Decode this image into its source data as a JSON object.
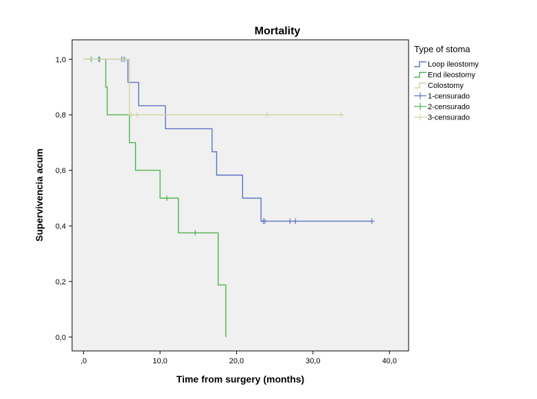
{
  "chart_data": {
    "type": "line",
    "subtype": "kaplan-meier-step",
    "title": "Mortality",
    "xlabel": "Time from surgery (months)",
    "ylabel": "Supervivencia acum",
    "xlim": [
      -1.5,
      42.5
    ],
    "ylim": [
      -0.05,
      1.07
    ],
    "x_ticks": [
      {
        "value": 0,
        "label": ",0"
      },
      {
        "value": 10,
        "label": "10,0"
      },
      {
        "value": 20,
        "label": "20,0"
      },
      {
        "value": 30,
        "label": "30,0"
      },
      {
        "value": 40,
        "label": "40,0"
      }
    ],
    "y_ticks": [
      {
        "value": 0,
        "label": "0,0"
      },
      {
        "value": 0.2,
        "label": "0,2"
      },
      {
        "value": 0.4,
        "label": "0,4"
      },
      {
        "value": 0.6,
        "label": "0,6"
      },
      {
        "value": 0.8,
        "label": "0,8"
      },
      {
        "value": 1.0,
        "label": "1,0"
      }
    ],
    "grid": false,
    "legend": {
      "title": "Type of stoma",
      "position": "right",
      "entries": [
        "Loop ileostomy",
        "End ileostomy",
        "Colostomy",
        "1-censurado",
        "2-censurado",
        "3-censurado"
      ]
    },
    "series": [
      {
        "name": "Loop ileostomy",
        "censor_name": "1-censurado",
        "color": "#5b73c4",
        "steps": [
          [
            0,
            1.0
          ],
          [
            5.8,
            0.917
          ],
          [
            7.2,
            0.833
          ],
          [
            10.7,
            0.75
          ],
          [
            16.8,
            0.667
          ],
          [
            17.4,
            0.583
          ],
          [
            20.8,
            0.5
          ],
          [
            23.2,
            0.417
          ],
          [
            37.7,
            0.417
          ]
        ],
        "censored": [
          [
            2.0,
            1.0
          ],
          [
            5.0,
            1.0
          ],
          [
            5.3,
            1.0
          ],
          [
            23.5,
            0.417
          ],
          [
            23.7,
            0.417
          ],
          [
            27.0,
            0.417
          ],
          [
            27.7,
            0.417
          ],
          [
            37.7,
            0.417
          ]
        ]
      },
      {
        "name": "End ileostomy",
        "censor_name": "2-censurado",
        "color": "#4db34d",
        "steps": [
          [
            0,
            1.0
          ],
          [
            2.9,
            0.9
          ],
          [
            3.1,
            0.8
          ],
          [
            6.0,
            0.7
          ],
          [
            6.8,
            0.6
          ],
          [
            10.0,
            0.5
          ],
          [
            12.4,
            0.375
          ],
          [
            17.6,
            0.1875
          ],
          [
            18.6,
            0.0
          ]
        ],
        "censored": [
          [
            1.0,
            1.0
          ],
          [
            2.1,
            1.0
          ],
          [
            10.9,
            0.5
          ],
          [
            14.6,
            0.375
          ]
        ]
      },
      {
        "name": "Colostomy",
        "censor_name": "3-censurado",
        "color": "#d3d3a2",
        "steps": [
          [
            0,
            1.0
          ],
          [
            6.0,
            0.8
          ],
          [
            33.7,
            0.8
          ]
        ],
        "censored": [
          [
            5.5,
            1.0
          ],
          [
            6.2,
            0.8
          ],
          [
            7.0,
            0.8
          ],
          [
            24.0,
            0.8
          ],
          [
            33.7,
            0.8
          ]
        ]
      }
    ]
  }
}
